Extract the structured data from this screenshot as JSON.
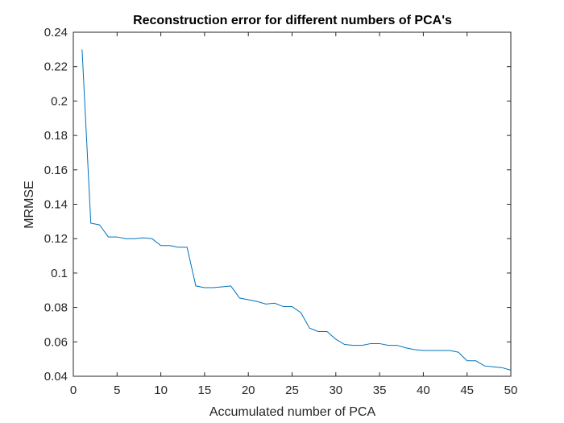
{
  "chart_data": {
    "type": "line",
    "title": "Reconstruction error for different numbers of PCA's",
    "xlabel": "Accumulated number of PCA",
    "ylabel": "MRMSE",
    "xlim": [
      0,
      50
    ],
    "ylim": [
      0.04,
      0.24
    ],
    "xticks": [
      0,
      5,
      10,
      15,
      20,
      25,
      30,
      35,
      40,
      45,
      50
    ],
    "xtick_labels": [
      "0",
      "5",
      "10",
      "15",
      "20",
      "25",
      "30",
      "35",
      "40",
      "45",
      "50"
    ],
    "yticks": [
      0.04,
      0.06,
      0.08,
      0.1,
      0.12,
      0.14,
      0.16,
      0.18,
      0.2,
      0.22,
      0.24
    ],
    "ytick_labels": [
      "0.04",
      "0.06",
      "0.08",
      "0.1",
      "0.12",
      "0.14",
      "0.16",
      "0.18",
      "0.2",
      "0.22",
      "0.24"
    ],
    "grid": false,
    "line_color": "#0072BD",
    "axis_color": "#262626",
    "series": [
      {
        "x": [
          1,
          2,
          3,
          4,
          5,
          6,
          7,
          8,
          9,
          10,
          11,
          12,
          13,
          14,
          15,
          16,
          17,
          18,
          19,
          20,
          21,
          22,
          23,
          24,
          25,
          26,
          27,
          28,
          29,
          30,
          31,
          32,
          33,
          34,
          35,
          36,
          37,
          38,
          39,
          40,
          41,
          42,
          43,
          44,
          45,
          46,
          47,
          48,
          49,
          50
        ],
        "values": [
          0.23,
          0.129,
          0.128,
          0.121,
          0.121,
          0.12,
          0.12,
          0.1205,
          0.12,
          0.116,
          0.116,
          0.115,
          0.115,
          0.0925,
          0.0915,
          0.0915,
          0.092,
          0.0925,
          0.0855,
          0.0845,
          0.0835,
          0.082,
          0.0825,
          0.0805,
          0.0805,
          0.077,
          0.068,
          0.066,
          0.066,
          0.0615,
          0.0585,
          0.058,
          0.058,
          0.059,
          0.059,
          0.058,
          0.058,
          0.0565,
          0.0555,
          0.055,
          0.055,
          0.055,
          0.055,
          0.054,
          0.049,
          0.049,
          0.046,
          0.0455,
          0.045,
          0.0435
        ]
      }
    ]
  }
}
